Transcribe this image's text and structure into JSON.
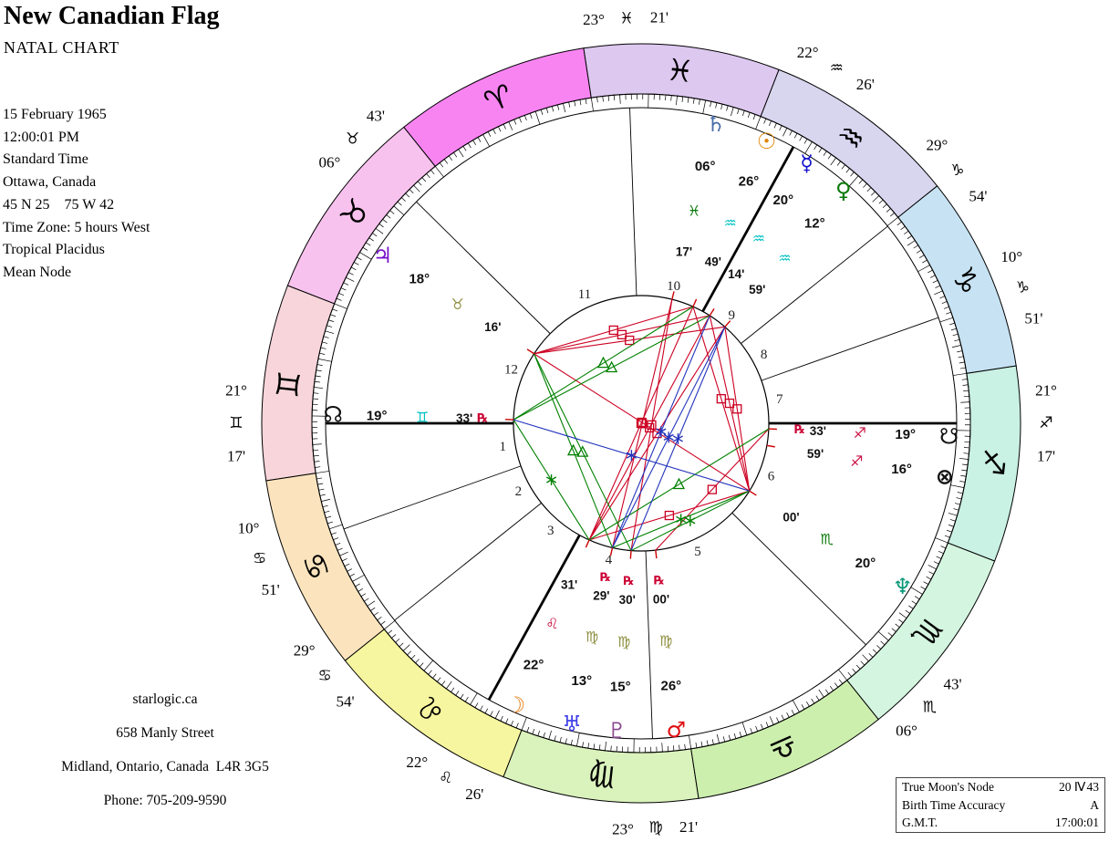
{
  "header": {
    "title": "New Canadian Flag",
    "subtitle": "NATAL CHART"
  },
  "info_lines": [
    "15 February 1965",
    "12:00:01 PM",
    "Standard Time",
    "Ottawa, Canada",
    "45 N 25    75 W 42",
    "Time Zone: 5 hours West",
    "Tropical Placidus",
    "Mean Node"
  ],
  "contact_lines": [
    "starlogic.ca",
    "658 Manly Street",
    "Midland, Ontario, Canada  L4R 3G5",
    "Phone: 705-209-9590"
  ],
  "stats_table": {
    "rows": [
      {
        "label": "True Moon's Node",
        "value": "20 Ⅳ 43"
      },
      {
        "label": "Birth Time Accuracy",
        "value": "A"
      },
      {
        "label": "G.M.T.",
        "value": "17:00:01"
      }
    ]
  },
  "chart": {
    "ascendant_lambda": 81.283,
    "retro_glyph": "℞",
    "retro_color": "#cc0033",
    "signs": [
      {
        "name": "aries",
        "glyph": "♈",
        "start": 0,
        "color": "#f884f2"
      },
      {
        "name": "taurus",
        "glyph": "♉",
        "start": 30,
        "color": "#f8c2ee"
      },
      {
        "name": "gemini",
        "glyph": "♊",
        "start": 60,
        "color": "#f7d5da"
      },
      {
        "name": "cancer",
        "glyph": "♋",
        "start": 90,
        "color": "#fbe4bd"
      },
      {
        "name": "leo",
        "glyph": "♌",
        "start": 120,
        "color": "#f7f6a0"
      },
      {
        "name": "virgo",
        "glyph": "♍",
        "start": 150,
        "color": "#daf2bc"
      },
      {
        "name": "libra",
        "glyph": "♎",
        "start": 180,
        "color": "#cdefae"
      },
      {
        "name": "scorpio",
        "glyph": "♏",
        "start": 210,
        "color": "#d4f5df"
      },
      {
        "name": "sagittarius",
        "glyph": "♐",
        "start": 240,
        "color": "#c9f1e4"
      },
      {
        "name": "capricorn",
        "glyph": "♑",
        "start": 270,
        "color": "#c7e3f3"
      },
      {
        "name": "aquarius",
        "glyph": "♒",
        "start": 300,
        "color": "#d8d5ef"
      },
      {
        "name": "pisces",
        "glyph": "♓",
        "start": 330,
        "color": "#ddc8f0"
      }
    ],
    "cusps": [
      {
        "house": 1,
        "lambda": 81.283,
        "deg": "21°",
        "sign": "♊",
        "min": "17'",
        "bold": true
      },
      {
        "house": 2,
        "lambda": 100.85,
        "deg": "10°",
        "sign": "♋",
        "min": "51'",
        "bold": false
      },
      {
        "house": 3,
        "lambda": 119.9,
        "deg": "29°",
        "sign": "♋",
        "min": "54'",
        "bold": false
      },
      {
        "house": 4,
        "lambda": 142.433,
        "deg": "22°",
        "sign": "♌",
        "min": "26'",
        "bold": true
      },
      {
        "house": 5,
        "lambda": 173.35,
        "deg": "23°",
        "sign": "♍",
        "min": "21'",
        "bold": false
      },
      {
        "house": 6,
        "lambda": 216.717,
        "deg": "06°",
        "sign": "♏",
        "min": "43'",
        "bold": false
      },
      {
        "house": 7,
        "lambda": 261.283,
        "deg": "21°",
        "sign": "♐",
        "min": "17'",
        "bold": true
      },
      {
        "house": 8,
        "lambda": 280.85,
        "deg": "10°",
        "sign": "♑",
        "min": "51'",
        "bold": false
      },
      {
        "house": 9,
        "lambda": 299.9,
        "deg": "29°",
        "sign": "♑",
        "min": "54'",
        "bold": false
      },
      {
        "house": 10,
        "lambda": 322.433,
        "deg": "22°",
        "sign": "♒",
        "min": "26'",
        "bold": true
      },
      {
        "house": 11,
        "lambda": 353.35,
        "deg": "23°",
        "sign": "♓",
        "min": "21'",
        "bold": false
      },
      {
        "house": 12,
        "lambda": 36.717,
        "deg": "06°",
        "sign": "♉",
        "min": "43'",
        "bold": false
      }
    ],
    "planets": [
      {
        "name": "saturn",
        "glyph": "♄",
        "color": "#476ca8",
        "deg": "06°",
        "sign": "♓",
        "sign_color": "#0a7a0a",
        "min": "17'",
        "retro": false,
        "theta": 76
      },
      {
        "name": "sun",
        "glyph": "☉",
        "color": "#e08200",
        "deg": "26°",
        "sign": "♒",
        "sign_color": "#00c2c2",
        "min": "49'",
        "retro": false,
        "theta": 66
      },
      {
        "name": "mercury",
        "glyph": "☿",
        "color": "#1111cc",
        "deg": "20°",
        "sign": "♒",
        "sign_color": "#00c2c2",
        "min": "14'",
        "retro": false,
        "theta": 57.5
      },
      {
        "name": "venus",
        "glyph": "♀",
        "color": "#0a7a0a",
        "deg": "12°",
        "sign": "♒",
        "sign_color": "#00c2c2",
        "min": "59'",
        "retro": false,
        "theta": 49
      },
      {
        "name": "jupiter",
        "glyph": "♃",
        "color": "#7711cc",
        "deg": "18°",
        "sign": "♉",
        "sign_color": "#8f8f42",
        "min": "16'",
        "retro": false,
        "theta": 147
      },
      {
        "name": "nnode",
        "glyph": "☊",
        "color": "#111111",
        "deg": "19°",
        "sign": "♊",
        "sign_color": "#00c2c2",
        "min": "33'",
        "retro": true,
        "theta": 178.4
      },
      {
        "name": "moon",
        "glyph": "☽",
        "color": "#e87c14",
        "deg": "22°",
        "sign": "♌",
        "sign_color": "#cc1144",
        "min": "31'",
        "retro": false,
        "theta": 246
      },
      {
        "name": "uranus",
        "glyph": "♅",
        "color": "#4141e8",
        "deg": "13°",
        "sign": "♍",
        "sign_color": "#8f8f42",
        "min": "29'",
        "retro": true,
        "theta": 257
      },
      {
        "name": "pluto",
        "glyph": "♇",
        "color": "#8a4a8f",
        "deg": "15°",
        "sign": "♍",
        "sign_color": "#8f8f42",
        "min": "30'",
        "retro": true,
        "theta": 265.5
      },
      {
        "name": "mars",
        "glyph": "♂",
        "color": "#e01111",
        "deg": "26°",
        "sign": "♍",
        "sign_color": "#8f8f42",
        "min": "00'",
        "retro": true,
        "theta": 276.5
      },
      {
        "name": "neptune",
        "glyph": "♆",
        "color": "#0a9878",
        "deg": "20°",
        "sign": "♏",
        "sign_color": "#0a7a0a",
        "min": "00'",
        "retro": false,
        "theta": 328
      },
      {
        "name": "pof",
        "glyph": "⊗",
        "color": "#111111",
        "deg": "16°",
        "sign": "♐",
        "sign_color": "#cc1144",
        "min": "59'",
        "retro": false,
        "theta": 350
      },
      {
        "name": "snode",
        "glyph": "☋",
        "color": "#111111",
        "deg": "19°",
        "sign": "♐",
        "sign_color": "#cc1144",
        "min": "33'",
        "retro": true,
        "theta": 357.5
      }
    ],
    "aspect_colors": {
      "hard": "#cc0022",
      "soft": "#008000",
      "quincunx": "#2233bb"
    },
    "aspects": [
      {
        "a": "moon",
        "b": "sun",
        "type": "opposition"
      },
      {
        "a": "moon",
        "b": "mercury",
        "type": "opposition"
      },
      {
        "a": "moon",
        "b": "venus",
        "type": "opposition"
      },
      {
        "a": "saturn",
        "b": "uranus",
        "type": "opposition"
      },
      {
        "a": "saturn",
        "b": "pluto",
        "type": "opposition"
      },
      {
        "a": "jupiter",
        "b": "neptune",
        "type": "opposition"
      },
      {
        "a": "jupiter",
        "b": "sun",
        "type": "square"
      },
      {
        "a": "jupiter",
        "b": "mercury",
        "type": "square"
      },
      {
        "a": "jupiter",
        "b": "venus",
        "type": "square"
      },
      {
        "a": "neptune",
        "b": "sun",
        "type": "square"
      },
      {
        "a": "neptune",
        "b": "mercury",
        "type": "square"
      },
      {
        "a": "neptune",
        "b": "venus",
        "type": "square"
      },
      {
        "a": "neptune",
        "b": "moon",
        "type": "square"
      },
      {
        "a": "mars",
        "b": "snode",
        "type": "square"
      },
      {
        "a": "jupiter",
        "b": "uranus",
        "type": "trine"
      },
      {
        "a": "jupiter",
        "b": "pluto",
        "type": "trine"
      },
      {
        "a": "moon",
        "b": "snode",
        "type": "trine"
      },
      {
        "a": "nnode",
        "b": "sun",
        "type": "trine"
      },
      {
        "a": "nnode",
        "b": "mercury",
        "type": "trine"
      },
      {
        "a": "moon",
        "b": "nnode",
        "type": "sextile"
      },
      {
        "a": "neptune",
        "b": "pluto",
        "type": "sextile"
      },
      {
        "a": "neptune",
        "b": "uranus",
        "type": "sextile"
      },
      {
        "a": "nnode",
        "b": "neptune",
        "type": "quincunx"
      },
      {
        "a": "venus",
        "b": "uranus",
        "type": "quincunx"
      },
      {
        "a": "venus",
        "b": "pluto",
        "type": "quincunx"
      },
      {
        "a": "mercury",
        "b": "uranus",
        "type": "quincunx"
      }
    ]
  }
}
